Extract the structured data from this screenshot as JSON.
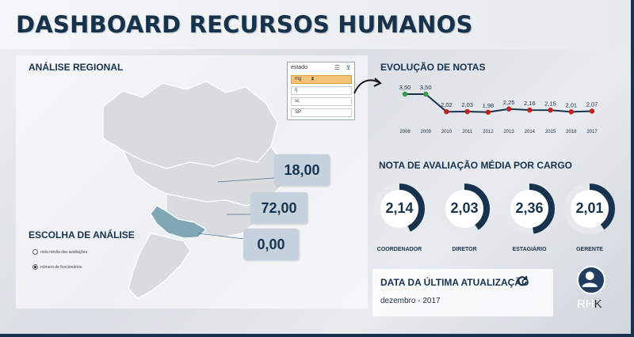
{
  "header": {
    "title": "DASHBOARD RECURSOS HUMANOS"
  },
  "regional": {
    "title": "ANÁLISE REGIONAL",
    "slicer": {
      "title": "estado",
      "items": [
        {
          "label": "mg",
          "selected": true
        },
        {
          "label": "rj",
          "selected": false
        },
        {
          "label": "sc",
          "selected": false
        },
        {
          "label": "SP",
          "selected": false
        }
      ]
    },
    "values": [
      "18,00",
      "72,00",
      "0,00"
    ],
    "highlight_color": "#7fa7b4",
    "map_color": "#d9dcdf"
  },
  "analysis_choice": {
    "title": "ESCOLHA DE ANÁLISE",
    "options": [
      {
        "label": "nota média das avaliações",
        "selected": false
      },
      {
        "label": "número de funcionários",
        "selected": true
      }
    ]
  },
  "evolution": {
    "title": "EVOLUÇÃO DE NOTAS",
    "chart_data": {
      "type": "line",
      "x": [
        "2008",
        "2009",
        "2010",
        "2011",
        "2012",
        "2013",
        "2014",
        "2015",
        "2016",
        "2017"
      ],
      "values": [
        3.5,
        3.5,
        2.02,
        2.03,
        1.98,
        2.25,
        2.16,
        2.15,
        2.01,
        2.07
      ],
      "labels": [
        "3,50",
        "3,50",
        "2,02",
        "2,03",
        "1,98",
        "2,25",
        "2,16",
        "2,15",
        "2,01",
        "2,07"
      ],
      "point_colors": [
        "#3a9a4a",
        "#3a9a4a",
        "#c0231f",
        "#c0231f",
        "#c0231f",
        "#c0231f",
        "#c0231f",
        "#c0231f",
        "#c0231f",
        "#c0231f"
      ],
      "line_color": "#17324d"
    }
  },
  "by_role": {
    "title": "NOTA DE AVALIAÇÃO MÉDIA POR CARGO",
    "gauges": [
      {
        "label": "COORDENADOR",
        "value_text": "2,14",
        "value": 2.14
      },
      {
        "label": "DIRETOR",
        "value_text": "2,03",
        "value": 2.03
      },
      {
        "label": "ESTAGIÁRIO",
        "value_text": "2,36",
        "value": 2.36
      },
      {
        "label": "GERENTE",
        "value_text": "2,01",
        "value": 2.01
      }
    ],
    "gauge_color": "#17324d",
    "gauge_track": "#e6e9ec"
  },
  "update": {
    "title": "DATA DA ÚLTIMA ATUALIZAÇÃO",
    "date": "dezembro - 2017",
    "icon": "refresh-icon"
  },
  "logo": {
    "text_a": "RH",
    "text_b": "K",
    "icon": "user-icon"
  }
}
